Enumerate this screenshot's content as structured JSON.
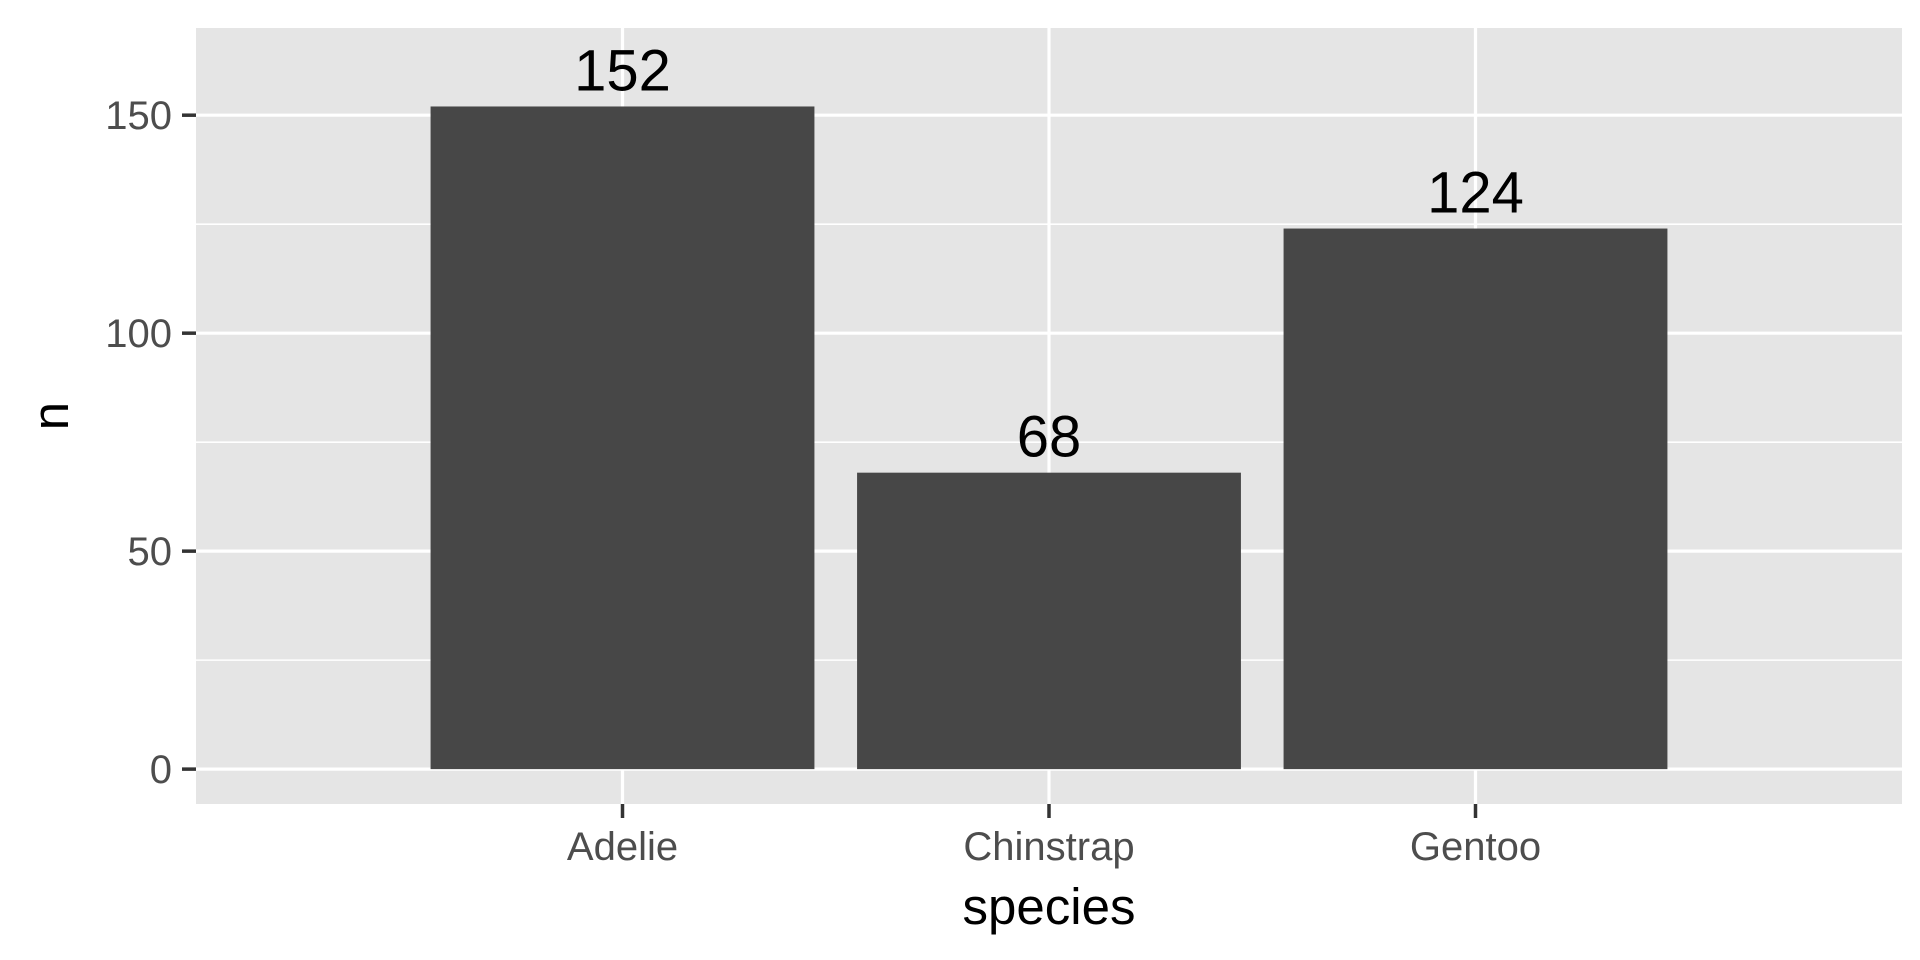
{
  "chart_data": {
    "type": "bar",
    "categories": [
      "Adelie",
      "Chinstrap",
      "Gentoo"
    ],
    "values": [
      152,
      68,
      124
    ],
    "data_labels": [
      "152",
      "68",
      "124"
    ],
    "xlabel": "species",
    "ylabel": "n",
    "ylim": [
      -8,
      170
    ],
    "yticks": [
      0,
      50,
      100,
      150
    ],
    "ytick_labels": [
      "0",
      "50",
      "100",
      "150"
    ],
    "minor_yticks": [
      25,
      75,
      125
    ],
    "grid": true,
    "legend": "none"
  },
  "colors": {
    "panel_background": "#e5e5e5",
    "gridline": "#ffffff",
    "bar_fill": "#474747",
    "tick_mark": "#333333",
    "tick_label": "#4d4d4d",
    "text": "#000000"
  }
}
